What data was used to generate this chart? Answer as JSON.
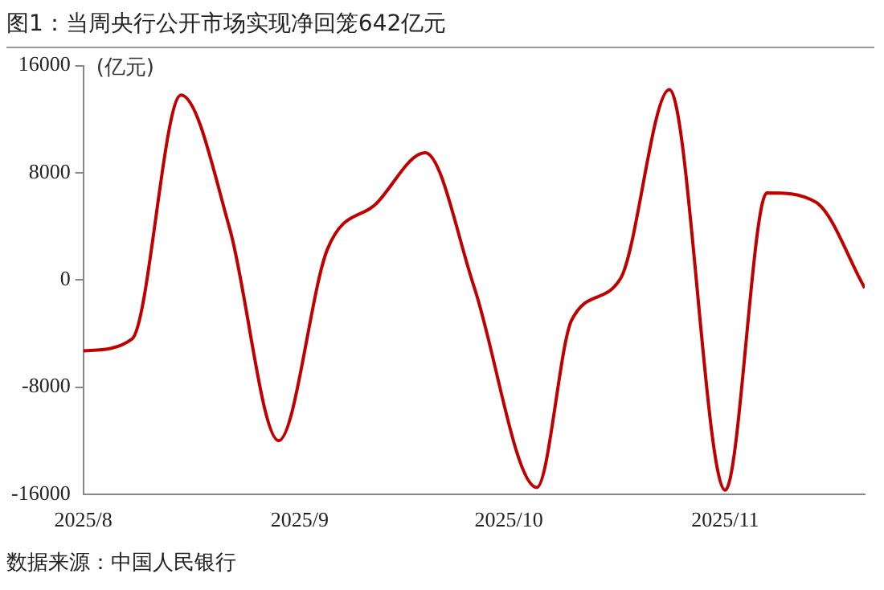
{
  "chart_data": {
    "type": "line",
    "title": "图1：当周央行公开市场实现净回笼642亿元",
    "ylabel": "(亿元)",
    "annotations": [
      "数据来源：中国人民银行"
    ],
    "x": [
      "2025-08-01",
      "2025-08-08",
      "2025-08-15",
      "2025-08-22",
      "2025-08-29",
      "2025-09-05",
      "2025-09-12",
      "2025-09-19",
      "2025-09-26",
      "2025-10-05",
      "2025-10-10",
      "2025-10-17",
      "2025-10-24",
      "2025-11-01",
      "2025-11-07",
      "2025-11-14",
      "2025-11-21"
    ],
    "series": [
      {
        "color": "#c00000",
        "values": [
          -5300,
          -4400,
          13800,
          3800,
          -12000,
          2300,
          5700,
          9500,
          -500,
          -15500,
          -3000,
          100,
          14200,
          -15700,
          6500,
          5800,
          -600
        ]
      }
    ],
    "xlim": [
      "2025-08-01",
      "2025-11-21"
    ],
    "xticks": [
      {
        "value": "2025-08-01",
        "label": "2025/8"
      },
      {
        "value": "2025-09-01",
        "label": "2025/9"
      },
      {
        "value": "2025-10-01",
        "label": "2025/10"
      },
      {
        "value": "2025-11-01",
        "label": "2025/11"
      }
    ],
    "ylim": [
      -16000,
      16000
    ],
    "yticks": [
      -16000,
      -8000,
      0,
      8000,
      16000
    ],
    "marker": "none",
    "line_style": "solid",
    "legend": false
  }
}
